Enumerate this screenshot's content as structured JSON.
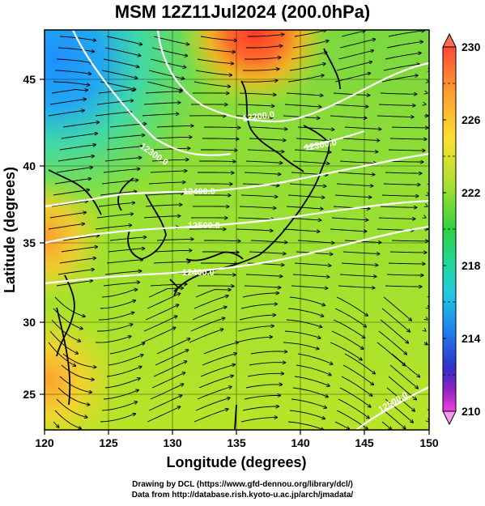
{
  "title": "MSM 12Z11Jul2024 (200.0hPa)",
  "xlabel": "Longitude (degrees)",
  "ylabel": "Latitude  (degrees)",
  "x_ticks": [
    "120",
    "125",
    "130",
    "135",
    "140",
    "145",
    "150"
  ],
  "y_ticks": [
    "25",
    "30",
    "35",
    "40",
    "45"
  ],
  "colorbar_ticks": [
    "230",
    "226",
    "222",
    "218",
    "214",
    "210"
  ],
  "contour_labels": [
    "12300.0",
    "12200.0",
    "12400.0",
    "12500.0",
    "12300.0",
    "12400.0",
    "12500.0"
  ],
  "credit_line1": "Drawing by DCL (https://www.gfd-dennou.org/library/dcl/)",
  "credit_line2": "Data from http://database.rish.kyoto-u.ac.jp/arch/jmadata/",
  "colors": {
    "contour": "#ffffff",
    "streamline": "#000000",
    "colorbar_top": "#ff6a55",
    "colorbar_bottom": "#f49af0"
  },
  "map": {
    "lon_range": [
      120,
      150
    ],
    "lat_range": [
      22.7,
      48
    ],
    "field": "temperature",
    "colorbar_range": [
      210,
      230
    ]
  }
}
